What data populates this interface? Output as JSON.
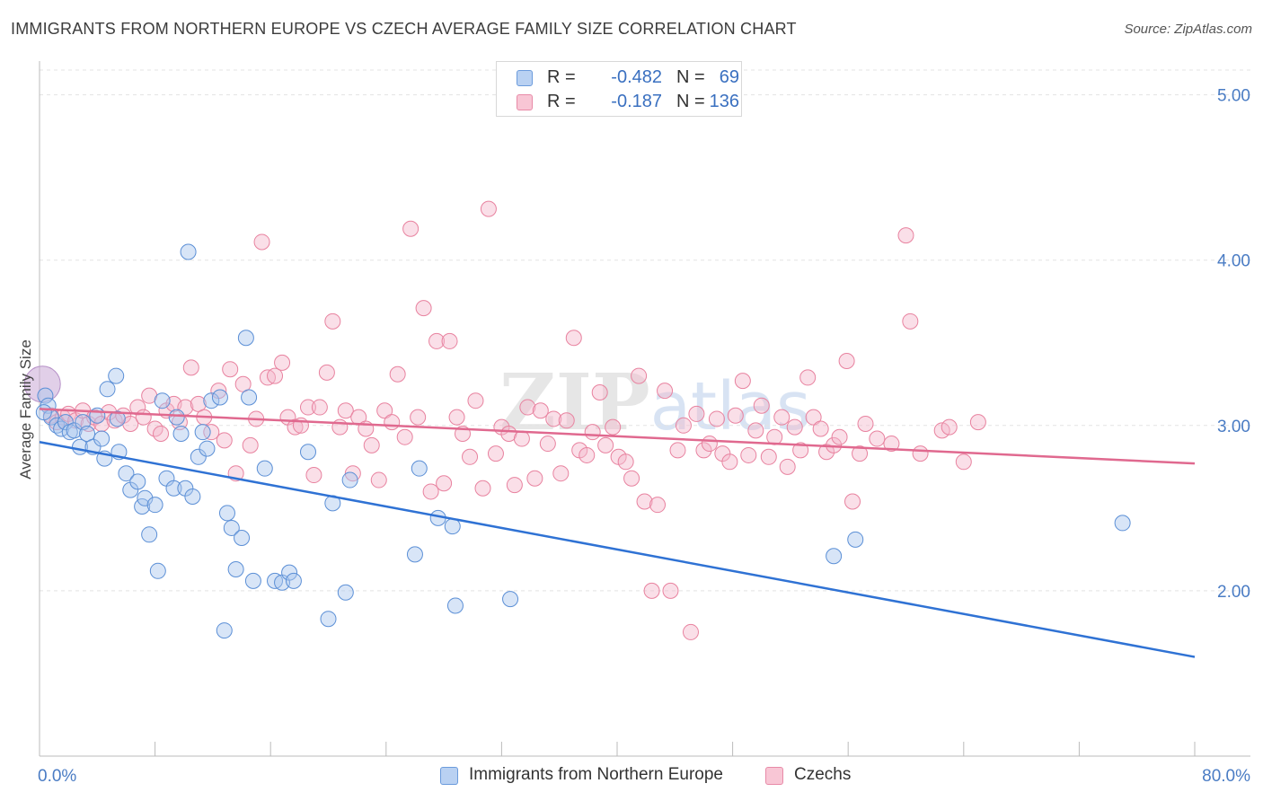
{
  "header": {
    "title": "IMMIGRANTS FROM NORTHERN EUROPE VS CZECH AVERAGE FAMILY SIZE CORRELATION CHART",
    "source": "Source: ZipAtlas.com"
  },
  "watermark": {
    "zip": "ZIP",
    "atlas": "atlas"
  },
  "legend_top": {
    "rows": [
      {
        "r_label": "R =",
        "r_value": "-0.482",
        "n_label": "N =",
        "n_value": "69"
      },
      {
        "r_label": "R =",
        "r_value": "-0.187",
        "n_label": "N =",
        "n_value": "136"
      }
    ]
  },
  "colors": {
    "blue_fill": "#a9c6ee",
    "blue_stroke": "#5b8fd6",
    "blue_line": "#2f72d4",
    "pink_fill": "#f5b9cb",
    "pink_stroke": "#e8829f",
    "pink_line": "#e0698f",
    "grid": "#e3e3e3",
    "tick_label": "#4a7cc4"
  },
  "chart_data": {
    "type": "scatter",
    "title": "IMMIGRANTS FROM NORTHERN EUROPE VS CZECH AVERAGE FAMILY SIZE CORRELATION CHART",
    "xlabel": "",
    "ylabel": "Average Family Size",
    "xlim": [
      0,
      80
    ],
    "ylim": [
      1.0,
      5.15
    ],
    "x_tick_labels": [
      "0.0%",
      "80.0%"
    ],
    "y_ticks": [
      2.0,
      3.0,
      4.0,
      5.0
    ],
    "y_tick_labels": [
      "2.00",
      "3.00",
      "4.00",
      "5.00"
    ],
    "grid": true,
    "legend_position": "top-center",
    "series": [
      {
        "name": "Immigrants from Northern Europe",
        "color": "#a9c6ee",
        "trend": {
          "x": [
            0,
            80
          ],
          "y": [
            2.9,
            1.6
          ]
        },
        "points": [
          [
            0.2,
            3.25
          ],
          [
            0.4,
            3.18
          ],
          [
            0.6,
            3.12
          ],
          [
            0.8,
            3.05
          ],
          [
            1.2,
            3.0
          ],
          [
            1.5,
            2.98
          ],
          [
            1.8,
            3.02
          ],
          [
            2.1,
            2.96
          ],
          [
            2.4,
            2.97
          ],
          [
            2.8,
            2.87
          ],
          [
            3.0,
            3.02
          ],
          [
            3.3,
            2.95
          ],
          [
            3.7,
            2.87
          ],
          [
            4.0,
            3.06
          ],
          [
            4.3,
            2.92
          ],
          [
            4.5,
            2.8
          ],
          [
            4.7,
            3.22
          ],
          [
            5.3,
            3.3
          ],
          [
            5.4,
            3.04
          ],
          [
            5.5,
            2.84
          ],
          [
            6.0,
            2.71
          ],
          [
            6.3,
            2.61
          ],
          [
            6.8,
            2.66
          ],
          [
            7.1,
            2.51
          ],
          [
            7.3,
            2.56
          ],
          [
            7.6,
            2.34
          ],
          [
            8.0,
            2.52
          ],
          [
            8.2,
            2.12
          ],
          [
            8.5,
            3.15
          ],
          [
            8.8,
            2.68
          ],
          [
            9.3,
            2.62
          ],
          [
            9.5,
            3.05
          ],
          [
            9.8,
            2.95
          ],
          [
            10.1,
            2.62
          ],
          [
            10.3,
            4.05
          ],
          [
            10.6,
            2.57
          ],
          [
            11.0,
            2.81
          ],
          [
            11.3,
            2.96
          ],
          [
            11.6,
            2.86
          ],
          [
            11.9,
            3.15
          ],
          [
            12.5,
            3.17
          ],
          [
            12.8,
            1.76
          ],
          [
            13.0,
            2.47
          ],
          [
            13.3,
            2.38
          ],
          [
            13.6,
            2.13
          ],
          [
            14.0,
            2.32
          ],
          [
            14.3,
            3.53
          ],
          [
            14.5,
            3.17
          ],
          [
            14.8,
            2.06
          ],
          [
            15.6,
            2.74
          ],
          [
            16.3,
            2.06
          ],
          [
            16.8,
            2.05
          ],
          [
            17.3,
            2.11
          ],
          [
            17.6,
            2.06
          ],
          [
            18.6,
            2.84
          ],
          [
            20.0,
            1.83
          ],
          [
            20.3,
            2.53
          ],
          [
            21.2,
            1.99
          ],
          [
            21.5,
            2.67
          ],
          [
            26.0,
            2.22
          ],
          [
            26.3,
            2.74
          ],
          [
            27.6,
            2.44
          ],
          [
            28.6,
            2.39
          ],
          [
            28.8,
            1.91
          ],
          [
            32.6,
            1.95
          ],
          [
            55.0,
            2.21
          ],
          [
            56.5,
            2.31
          ],
          [
            75.0,
            2.41
          ],
          [
            0.3,
            3.08
          ]
        ]
      },
      {
        "name": "Czechs",
        "color": "#f5b9cb",
        "trend": {
          "x": [
            0,
            80
          ],
          "y": [
            3.1,
            2.77
          ]
        },
        "points": [
          [
            0.8,
            3.06
          ],
          [
            1.2,
            3.02
          ],
          [
            1.6,
            3.05
          ],
          [
            2.0,
            3.07
          ],
          [
            2.5,
            3.03
          ],
          [
            3.0,
            3.09
          ],
          [
            3.4,
            3.01
          ],
          [
            3.8,
            3.05
          ],
          [
            4.3,
            3.01
          ],
          [
            4.8,
            3.08
          ],
          [
            5.2,
            3.03
          ],
          [
            5.8,
            3.06
          ],
          [
            6.3,
            3.01
          ],
          [
            6.8,
            3.11
          ],
          [
            7.2,
            3.05
          ],
          [
            7.6,
            3.18
          ],
          [
            8.0,
            2.98
          ],
          [
            8.4,
            2.95
          ],
          [
            8.8,
            3.09
          ],
          [
            9.3,
            3.13
          ],
          [
            9.7,
            3.02
          ],
          [
            10.1,
            3.11
          ],
          [
            10.5,
            3.35
          ],
          [
            11.0,
            3.13
          ],
          [
            11.4,
            3.05
          ],
          [
            11.9,
            2.96
          ],
          [
            12.4,
            3.21
          ],
          [
            12.8,
            2.91
          ],
          [
            13.2,
            3.34
          ],
          [
            13.6,
            2.71
          ],
          [
            14.1,
            3.25
          ],
          [
            14.6,
            2.88
          ],
          [
            15.0,
            3.04
          ],
          [
            15.4,
            4.11
          ],
          [
            15.8,
            3.29
          ],
          [
            16.3,
            3.3
          ],
          [
            16.8,
            3.38
          ],
          [
            17.2,
            3.05
          ],
          [
            17.7,
            2.99
          ],
          [
            18.1,
            3.0
          ],
          [
            18.6,
            3.11
          ],
          [
            19.0,
            2.7
          ],
          [
            19.4,
            3.11
          ],
          [
            19.9,
            3.32
          ],
          [
            20.3,
            3.63
          ],
          [
            20.8,
            2.99
          ],
          [
            21.2,
            3.09
          ],
          [
            21.7,
            2.71
          ],
          [
            22.1,
            3.05
          ],
          [
            22.6,
            2.98
          ],
          [
            23.0,
            2.88
          ],
          [
            23.5,
            2.67
          ],
          [
            23.9,
            3.09
          ],
          [
            24.4,
            3.02
          ],
          [
            24.8,
            3.31
          ],
          [
            25.3,
            2.93
          ],
          [
            25.7,
            4.19
          ],
          [
            26.2,
            3.05
          ],
          [
            26.6,
            3.71
          ],
          [
            27.1,
            2.6
          ],
          [
            27.5,
            3.51
          ],
          [
            28.0,
            2.65
          ],
          [
            28.4,
            3.51
          ],
          [
            28.9,
            3.05
          ],
          [
            29.3,
            2.95
          ],
          [
            29.8,
            2.81
          ],
          [
            30.2,
            3.15
          ],
          [
            30.7,
            2.62
          ],
          [
            31.1,
            4.31
          ],
          [
            31.6,
            2.83
          ],
          [
            32.0,
            2.99
          ],
          [
            32.5,
            2.95
          ],
          [
            32.9,
            2.64
          ],
          [
            33.4,
            2.92
          ],
          [
            33.8,
            3.11
          ],
          [
            34.3,
            2.68
          ],
          [
            34.7,
            3.09
          ],
          [
            35.2,
            2.89
          ],
          [
            35.6,
            3.04
          ],
          [
            36.1,
            2.71
          ],
          [
            36.5,
            3.03
          ],
          [
            37.0,
            3.53
          ],
          [
            37.4,
            2.85
          ],
          [
            37.9,
            2.82
          ],
          [
            38.3,
            2.96
          ],
          [
            38.8,
            3.2
          ],
          [
            39.2,
            2.88
          ],
          [
            39.7,
            2.99
          ],
          [
            40.1,
            2.81
          ],
          [
            40.6,
            2.78
          ],
          [
            41.0,
            2.68
          ],
          [
            41.5,
            3.3
          ],
          [
            41.9,
            2.54
          ],
          [
            42.4,
            2.0
          ],
          [
            42.8,
            2.52
          ],
          [
            43.3,
            3.21
          ],
          [
            43.7,
            2.0
          ],
          [
            44.2,
            2.85
          ],
          [
            44.6,
            3.0
          ],
          [
            45.1,
            1.75
          ],
          [
            45.5,
            3.07
          ],
          [
            46.0,
            2.85
          ],
          [
            46.4,
            2.89
          ],
          [
            46.9,
            3.04
          ],
          [
            47.3,
            2.83
          ],
          [
            47.8,
            2.78
          ],
          [
            48.2,
            3.06
          ],
          [
            48.7,
            3.27
          ],
          [
            49.1,
            2.82
          ],
          [
            49.6,
            2.97
          ],
          [
            50.0,
            3.12
          ],
          [
            50.5,
            2.81
          ],
          [
            50.9,
            2.93
          ],
          [
            51.4,
            3.05
          ],
          [
            51.8,
            2.75
          ],
          [
            52.3,
            2.99
          ],
          [
            52.7,
            2.85
          ],
          [
            53.2,
            3.29
          ],
          [
            53.6,
            3.05
          ],
          [
            54.1,
            2.98
          ],
          [
            54.5,
            2.84
          ],
          [
            55.0,
            2.88
          ],
          [
            55.4,
            2.93
          ],
          [
            55.9,
            3.39
          ],
          [
            56.3,
            2.54
          ],
          [
            56.8,
            2.83
          ],
          [
            57.2,
            3.01
          ],
          [
            58.0,
            2.92
          ],
          [
            59.0,
            2.89
          ],
          [
            60.0,
            4.15
          ],
          [
            60.3,
            3.63
          ],
          [
            61.0,
            2.83
          ],
          [
            62.5,
            2.97
          ],
          [
            63.0,
            2.99
          ],
          [
            64.0,
            2.78
          ],
          [
            65.0,
            3.02
          ]
        ]
      }
    ]
  },
  "legend_bottom": {
    "items": [
      {
        "label": "Immigrants from Northern Europe"
      },
      {
        "label": "Czechs"
      }
    ]
  }
}
